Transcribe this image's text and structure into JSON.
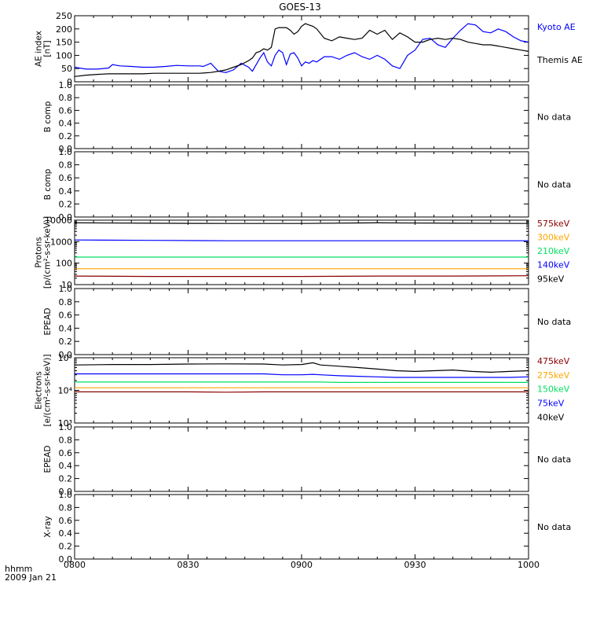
{
  "figure": {
    "title": "GOES-13",
    "xaxis_name": "hhmm",
    "date": "2009 Jan 21",
    "x_ticks": [
      "0800",
      "0830",
      "0900",
      "0930",
      "1000"
    ],
    "no_data_text": "No data"
  },
  "colors": {
    "axis": "#000000",
    "blue": "#0000ff",
    "black": "#000000",
    "darkred": "#8b0000",
    "orange": "#ffa500",
    "green": "#00e060",
    "red": "#cc0000"
  },
  "chart_data": [
    {
      "type": "line",
      "panel": "ae",
      "ylabel": [
        "AE index",
        "[nT]"
      ],
      "ylim": [
        0,
        250
      ],
      "yticks": [
        "0",
        "50",
        "100",
        "150",
        "200",
        "250"
      ],
      "x": [
        0,
        3,
        6,
        9,
        10,
        12,
        15,
        18,
        21,
        24,
        27,
        30,
        33,
        34,
        36,
        38,
        40,
        42,
        44,
        46,
        47,
        48,
        49,
        50,
        51,
        52,
        53,
        54,
        55,
        56,
        57,
        58,
        59,
        60,
        61,
        62,
        63,
        64,
        66,
        68,
        70,
        72,
        74,
        76,
        78,
        80,
        82,
        84,
        86,
        88,
        90,
        92,
        94,
        96,
        98,
        100,
        102,
        104,
        106,
        108,
        110,
        112,
        114,
        116,
        118,
        120
      ],
      "series": [
        {
          "name": "Kyoto AE",
          "color": "blue",
          "values": [
            55,
            48,
            48,
            52,
            65,
            60,
            58,
            55,
            55,
            58,
            62,
            60,
            60,
            58,
            70,
            40,
            35,
            45,
            70,
            55,
            40,
            65,
            90,
            110,
            75,
            60,
            100,
            120,
            110,
            65,
            105,
            110,
            90,
            60,
            75,
            70,
            80,
            75,
            95,
            95,
            85,
            100,
            110,
            95,
            85,
            100,
            85,
            60,
            50,
            100,
            120,
            160,
            165,
            140,
            130,
            165,
            195,
            220,
            215,
            190,
            185,
            200,
            190,
            170,
            155,
            150
          ]
        },
        {
          "name": "Themis AE",
          "color": "black",
          "values": [
            20,
            25,
            28,
            30,
            30,
            30,
            30,
            30,
            32,
            32,
            32,
            32,
            32,
            33,
            35,
            40,
            45,
            55,
            65,
            80,
            90,
            110,
            115,
            125,
            120,
            130,
            200,
            205,
            205,
            205,
            195,
            180,
            190,
            210,
            220,
            215,
            210,
            200,
            165,
            155,
            170,
            165,
            160,
            165,
            195,
            180,
            195,
            160,
            185,
            170,
            150,
            150,
            160,
            165,
            160,
            165,
            160,
            150,
            145,
            140,
            140,
            135,
            130,
            125,
            120,
            115
          ]
        }
      ]
    },
    {
      "type": "line",
      "panel": "nodata",
      "ylabel": [
        "B comp"
      ],
      "ylim": [
        0,
        1
      ],
      "yticks": [
        "0.0",
        "0.2",
        "0.4",
        "0.6",
        "0.8",
        "1.0"
      ],
      "no_data": "No data"
    },
    {
      "type": "line",
      "panel": "nodata",
      "ylabel": [
        "B comp"
      ],
      "ylim": [
        0,
        1
      ],
      "yticks": [
        "0.0",
        "0.2",
        "0.4",
        "0.6",
        "0.8",
        "1.0"
      ],
      "no_data": "No data"
    },
    {
      "type": "line",
      "panel": "protons",
      "log": true,
      "ylabel": [
        "Protons",
        "[p/(cm²-s-sr-keV)]"
      ],
      "ylim": [
        10,
        10000
      ],
      "yticks": [
        "10",
        "100",
        "1000",
        "10000"
      ],
      "x": [
        0,
        20,
        40,
        60,
        80,
        100,
        120
      ],
      "series": [
        {
          "name": "575keV",
          "color": "darkred",
          "values": [
            25,
            24,
            24,
            24,
            25,
            25,
            26
          ]
        },
        {
          "name": "300keV",
          "color": "orange",
          "values": [
            55,
            55,
            55,
            55,
            55,
            55,
            55
          ]
        },
        {
          "name": "210keV",
          "color": "green",
          "values": [
            190,
            190,
            190,
            190,
            190,
            190,
            190
          ]
        },
        {
          "name": "140keV",
          "color": "blue",
          "values": [
            1200,
            1150,
            1100,
            1100,
            1100,
            1100,
            1100
          ]
        },
        {
          "name": "95keV",
          "color": "black",
          "values": [
            7500,
            7200,
            7000,
            7000,
            7500,
            7200,
            7000
          ]
        }
      ]
    },
    {
      "type": "line",
      "panel": "nodata",
      "ylabel": [
        "EPEAD"
      ],
      "ylim": [
        0,
        1
      ],
      "yticks": [
        "0.0",
        "0.2",
        "0.4",
        "0.6",
        "0.8",
        "1.0"
      ],
      "no_data": "No data"
    },
    {
      "type": "line",
      "panel": "electrons",
      "log": true,
      "ylabel": [
        "Electrons",
        "[e/(cm²-s-sr-keV)]"
      ],
      "ylim": [
        1000,
        100000
      ],
      "yticks": [
        "10³",
        "10⁴",
        "10⁵"
      ],
      "x": [
        0,
        10,
        20,
        30,
        40,
        50,
        55,
        60,
        63,
        65,
        70,
        75,
        80,
        85,
        90,
        95,
        100,
        105,
        110,
        115,
        120
      ],
      "series": [
        {
          "name": "475keV",
          "color": "darkred",
          "values": [
            9000,
            9000,
            9000,
            9000,
            8800,
            9000,
            9000,
            9000,
            9000,
            9000,
            9000,
            9000,
            9000,
            9000,
            9000,
            9000,
            9000,
            9000,
            9000,
            9000,
            9000
          ]
        },
        {
          "name": "275keV",
          "color": "orange",
          "values": [
            12000,
            12000,
            12000,
            12000,
            12000,
            12000,
            12000,
            12000,
            12000,
            12000,
            12000,
            12000,
            12000,
            12000,
            12000,
            12000,
            12000,
            12000,
            12000,
            12000,
            12000
          ]
        },
        {
          "name": "150keV",
          "color": "green",
          "values": [
            18000,
            18000,
            18000,
            18000,
            18000,
            18000,
            18000,
            18000,
            18000,
            18000,
            17500,
            17500,
            17500,
            17500,
            17500,
            17500,
            17500,
            17500,
            17500,
            17500,
            17500
          ]
        },
        {
          "name": "75keV",
          "color": "blue",
          "values": [
            32000,
            32000,
            32000,
            32000,
            32000,
            32000,
            30000,
            30000,
            31000,
            30000,
            28000,
            27000,
            26000,
            25000,
            25000,
            25000,
            25000,
            25000,
            25000,
            25000,
            26000
          ]
        },
        {
          "name": "40keV",
          "color": "black",
          "values": [
            60000,
            62000,
            62000,
            64000,
            65000,
            64000,
            60000,
            62000,
            70000,
            60000,
            55000,
            50000,
            45000,
            40000,
            38000,
            40000,
            42000,
            38000,
            36000,
            38000,
            40000
          ]
        }
      ]
    },
    {
      "type": "line",
      "panel": "nodata",
      "ylabel": [
        "EPEAD"
      ],
      "ylim": [
        0,
        1
      ],
      "yticks": [
        "0.0",
        "0.2",
        "0.4",
        "0.6",
        "0.8",
        "1.0"
      ],
      "no_data": "No data"
    },
    {
      "type": "line",
      "panel": "nodata",
      "ylabel": [
        "X-ray"
      ],
      "ylim": [
        0,
        1
      ],
      "yticks": [
        "0.0",
        "0.2",
        "0.4",
        "0.6",
        "0.8",
        "1.0"
      ],
      "no_data": "No data"
    }
  ]
}
